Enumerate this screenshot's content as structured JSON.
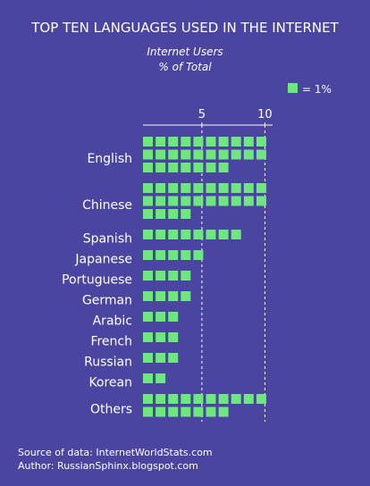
{
  "chart_data": {
    "type": "waffle-bar",
    "title": "TOP TEN LANGUAGES USED IN THE INTERNET",
    "subtitle_line1": "Internet Users",
    "subtitle_line2": "% of Total",
    "legend": {
      "label": "= 1%",
      "position": "top-right"
    },
    "x_ticks": [
      5,
      10
    ],
    "categories": [
      "English",
      "Chinese",
      "Spanish",
      "Japanese",
      "Portuguese",
      "German",
      "Arabic",
      "French",
      "Russian",
      "Korean",
      "Others"
    ],
    "values": [
      27,
      24,
      8,
      5,
      4,
      4,
      3,
      3,
      3,
      2,
      17
    ],
    "units_per_row": 10,
    "square_color": "#6ee77f",
    "background_color": "#4a45a0"
  },
  "footer": {
    "source": "Source of data: InternetWorldStats.com",
    "author": "Author: RussianSphinx.blogspot.com"
  }
}
